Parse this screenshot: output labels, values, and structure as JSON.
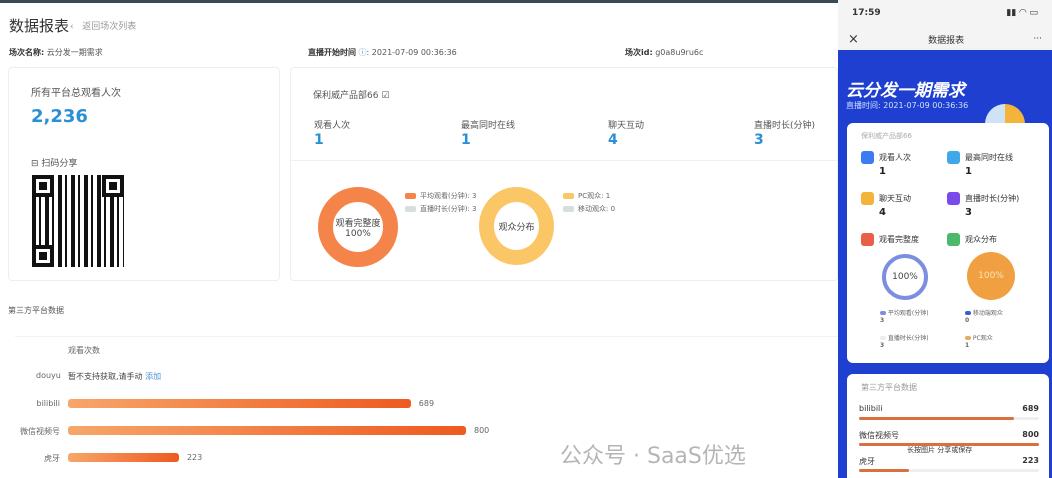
{
  "header": {
    "title": "数据报表",
    "back_label": "返回场次列表"
  },
  "meta": {
    "name_label": "场次名称:",
    "name_value": "云分发一期需求",
    "start_label": "直播开始时间",
    "start_value": "2021-07-09 00:36:36",
    "id_label": "场次id:",
    "id_value": "g0a8u9ru6c"
  },
  "total": {
    "label": "所有平台总观看人次",
    "value": "2,236",
    "share_label": "扫码分享"
  },
  "room": {
    "name": "保利威产品部66",
    "stats": [
      {
        "label": "观看人次",
        "value": "1"
      },
      {
        "label": "最高同时在线",
        "value": "1"
      },
      {
        "label": "聊天互动",
        "value": "4"
      },
      {
        "label": "直播时长(分钟)",
        "value": "3"
      }
    ],
    "donut1": {
      "center": "观看完整度",
      "pct": "100%",
      "legend": [
        "平均观看(分钟): 3",
        "直播时长(分钟): 3"
      ],
      "color": "#f5844a"
    },
    "donut2": {
      "center": "观众分布",
      "legend": [
        "PC观众: 1",
        "移动观众: 0"
      ],
      "color": "#fbc666"
    }
  },
  "third_party": {
    "title": "第三方平台数据",
    "column": "观看次数",
    "douyu": {
      "name": "douyu",
      "msg": "暂不支持获取,请手动",
      "link": "添加"
    },
    "chart_data": {
      "type": "bar",
      "orientation": "horizontal",
      "categories": [
        "bilibili",
        "微信视频号",
        "虎牙"
      ],
      "values": [
        689,
        800,
        223
      ],
      "xlabel": "观看次数"
    }
  },
  "phone": {
    "time": "17:59",
    "nav_title": "数据报表",
    "close": "×",
    "more": "···",
    "hero": "云分发一期需求",
    "live_time": "直播时间: 2021-07-09 00:36:36",
    "room": "保利威产品部66",
    "stats": [
      {
        "label": "观看人次",
        "value": "1",
        "color": "#3d7bf0"
      },
      {
        "label": "最高同时在线",
        "value": "1",
        "color": "#3fa8e8"
      },
      {
        "label": "聊天互动",
        "value": "4",
        "color": "#f2b43a"
      },
      {
        "label": "直播时长(分钟)",
        "value": "3",
        "color": "#7b4bea"
      }
    ],
    "completeness": "观看完整度",
    "distribution": "观众分布",
    "pct1": "100%",
    "pct2": "100%",
    "legend": [
      {
        "label": "平均观看(分钟)",
        "value": "3"
      },
      {
        "label": "移动端观众",
        "value": "0"
      },
      {
        "label": "直播时长(分钟)",
        "value": "3"
      },
      {
        "label": "PC观众",
        "value": "1"
      }
    ],
    "third_title": "第三方平台数据",
    "platforms": [
      {
        "name": "bilibili",
        "value": "689"
      },
      {
        "name": "微信视频号",
        "value": "800"
      },
      {
        "name": "虎牙",
        "value": "223"
      }
    ],
    "save_hint": "长按图片",
    "save_hint2": "分享或保存"
  },
  "watermark": "公众号 · SaaS优选"
}
